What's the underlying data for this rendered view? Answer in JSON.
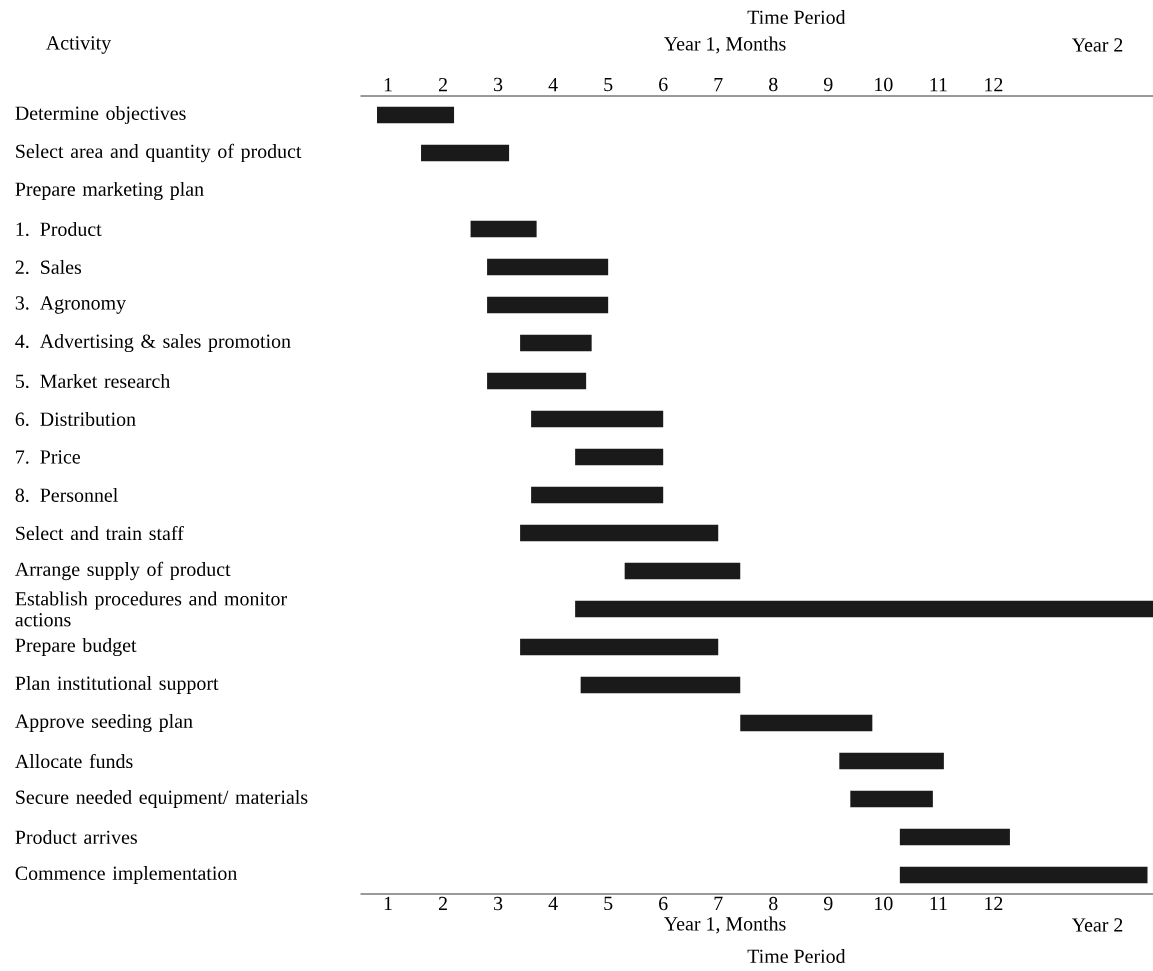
{
  "chart_data": {
    "type": "bar",
    "orientation": "horizontal",
    "xlabel": "Time Period",
    "x2label": "Time Period",
    "ylabel": "Activity",
    "annotations": [
      "Year 1, Months",
      "Year 2"
    ],
    "categories": [
      "Determine objectives",
      "Select area and quantity of product",
      "Prepare marketing plan",
      "1. Product",
      "2. Sales",
      "3. Agronomy",
      "4. Advertising & sales promotion",
      "5. Market research",
      "6. Distribution",
      "7. Price",
      "8. Personnel",
      "Select and train staff",
      "Arrange supply of product",
      "Establish procedures and monitor actions",
      "Prepare budget",
      "Plan institutional support",
      "Approve seeding plan",
      "Allocate funds",
      "Secure needed equipment/ materials",
      "Product arrives",
      "Commence implementation"
    ],
    "base": [
      0.8,
      1.6,
      null,
      2.5,
      2.8,
      2.8,
      3.4,
      2.8,
      3.6,
      4.4,
      3.6,
      3.4,
      5.3,
      4.4,
      3.4,
      4.5,
      7.4,
      9.2,
      9.4,
      10.3,
      10.3
    ],
    "values": [
      1.4,
      1.6,
      null,
      1.2,
      2.2,
      2.2,
      1.3,
      1.8,
      2.4,
      1.6,
      2.4,
      3.6,
      2.1,
      10.5,
      3.6,
      2.9,
      2.4,
      1.9,
      1.5,
      2.0,
      4.5
    ],
    "color": "#1a1a1a",
    "xlim": [
      0.5,
      14.9
    ],
    "xticks": [
      1,
      2,
      3,
      4,
      5,
      6,
      7,
      8,
      9,
      10,
      11,
      12
    ],
    "x2lim": [
      0.5,
      14.9
    ],
    "x2ticks": [
      1,
      2,
      3,
      4,
      5,
      6,
      7,
      8,
      9,
      10,
      11,
      12
    ]
  }
}
